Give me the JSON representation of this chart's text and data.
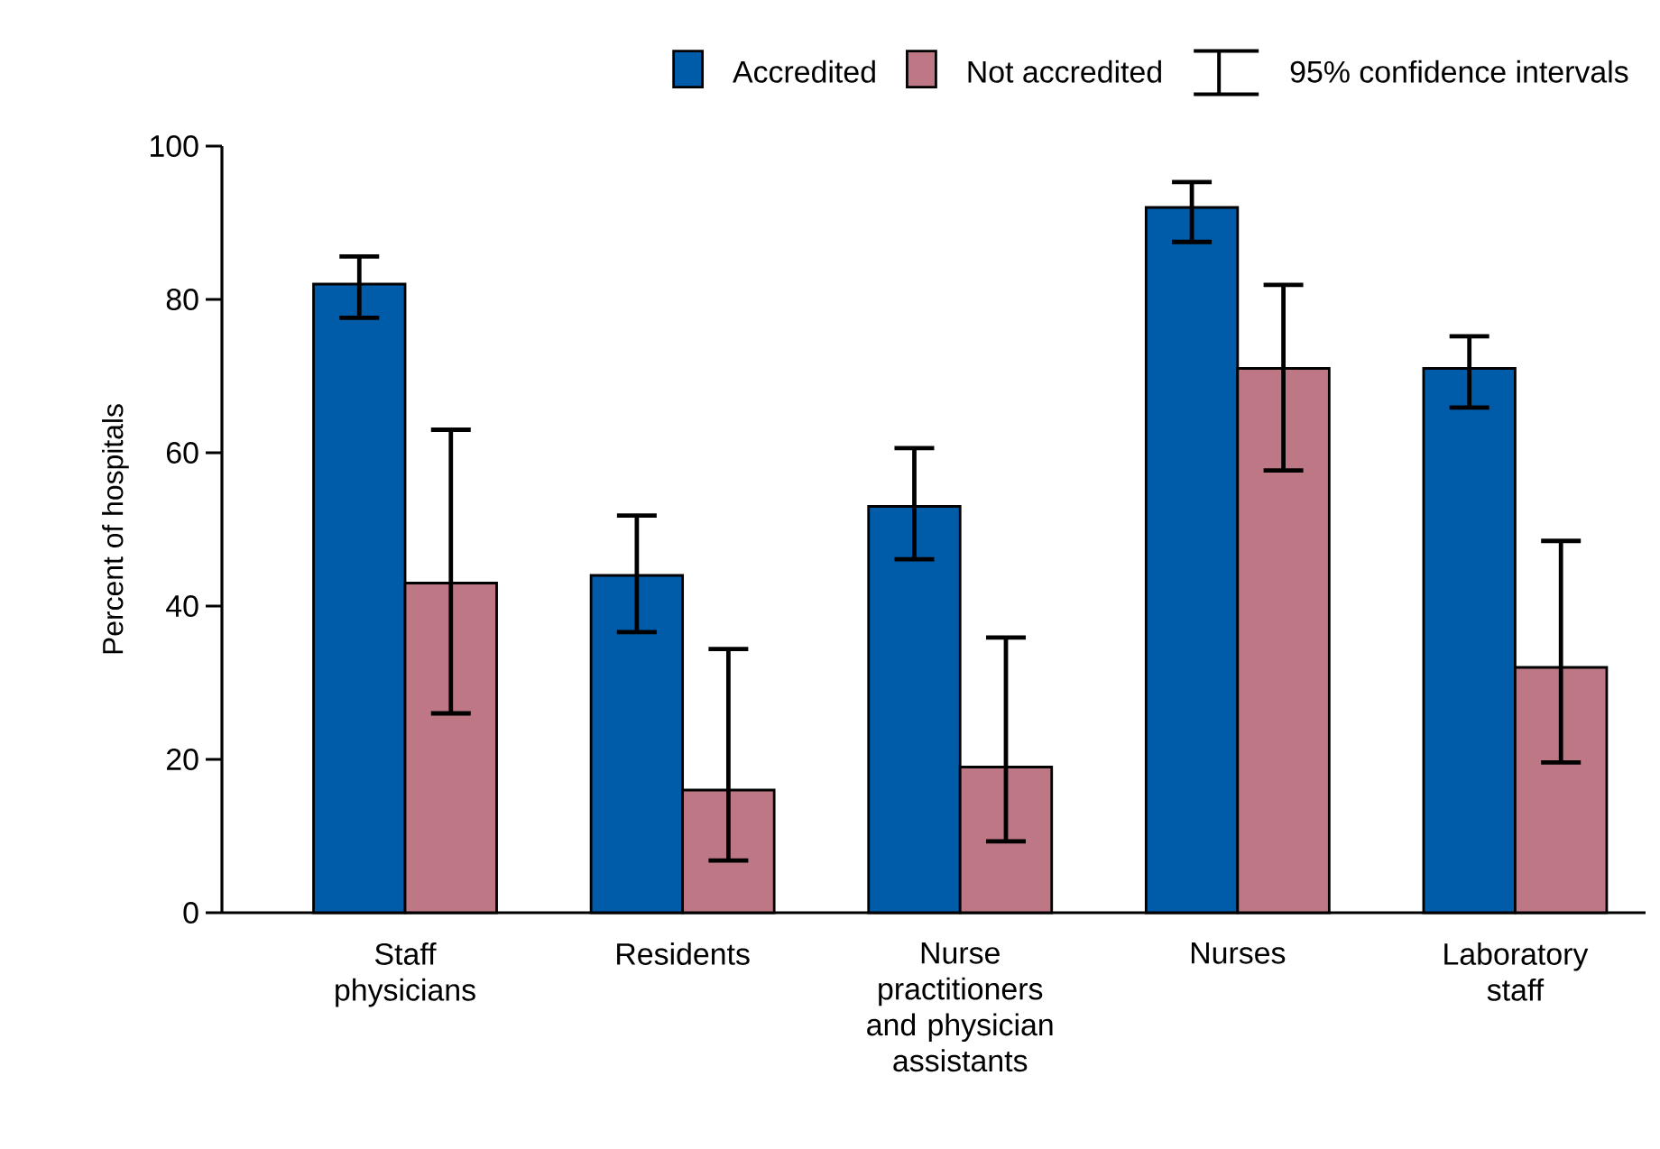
{
  "chart_data": {
    "type": "bar",
    "ylabel": "Percent of hospitals",
    "categories": [
      "Staff physicians",
      "Residents",
      "Nurse practitioners and physician assistants",
      "Nurses",
      "Laboratory staff"
    ],
    "series": [
      {
        "name": "Accredited",
        "color": "#005ba8",
        "values": [
          82,
          44,
          53,
          92,
          71
        ],
        "errors": [
          [
            77.6,
            85.6
          ],
          [
            36.6,
            51.8
          ],
          [
            46.1,
            60.6
          ],
          [
            87.5,
            95.3
          ],
          [
            65.9,
            75.2
          ]
        ]
      },
      {
        "name": "Not accredited",
        "color": "#bd7785",
        "values": [
          43,
          16,
          19,
          71,
          32
        ],
        "errors": [
          [
            26,
            63
          ],
          [
            6.8,
            34.4
          ],
          [
            9.3,
            35.9
          ],
          [
            57.7,
            81.9
          ],
          [
            19.6,
            48.5
          ]
        ]
      }
    ],
    "annotations": [
      "95% confidence intervals"
    ],
    "ylim": [
      0,
      100
    ],
    "yticks": [
      0,
      20,
      40,
      60,
      80,
      100
    ],
    "grid": false,
    "legend": "top"
  }
}
